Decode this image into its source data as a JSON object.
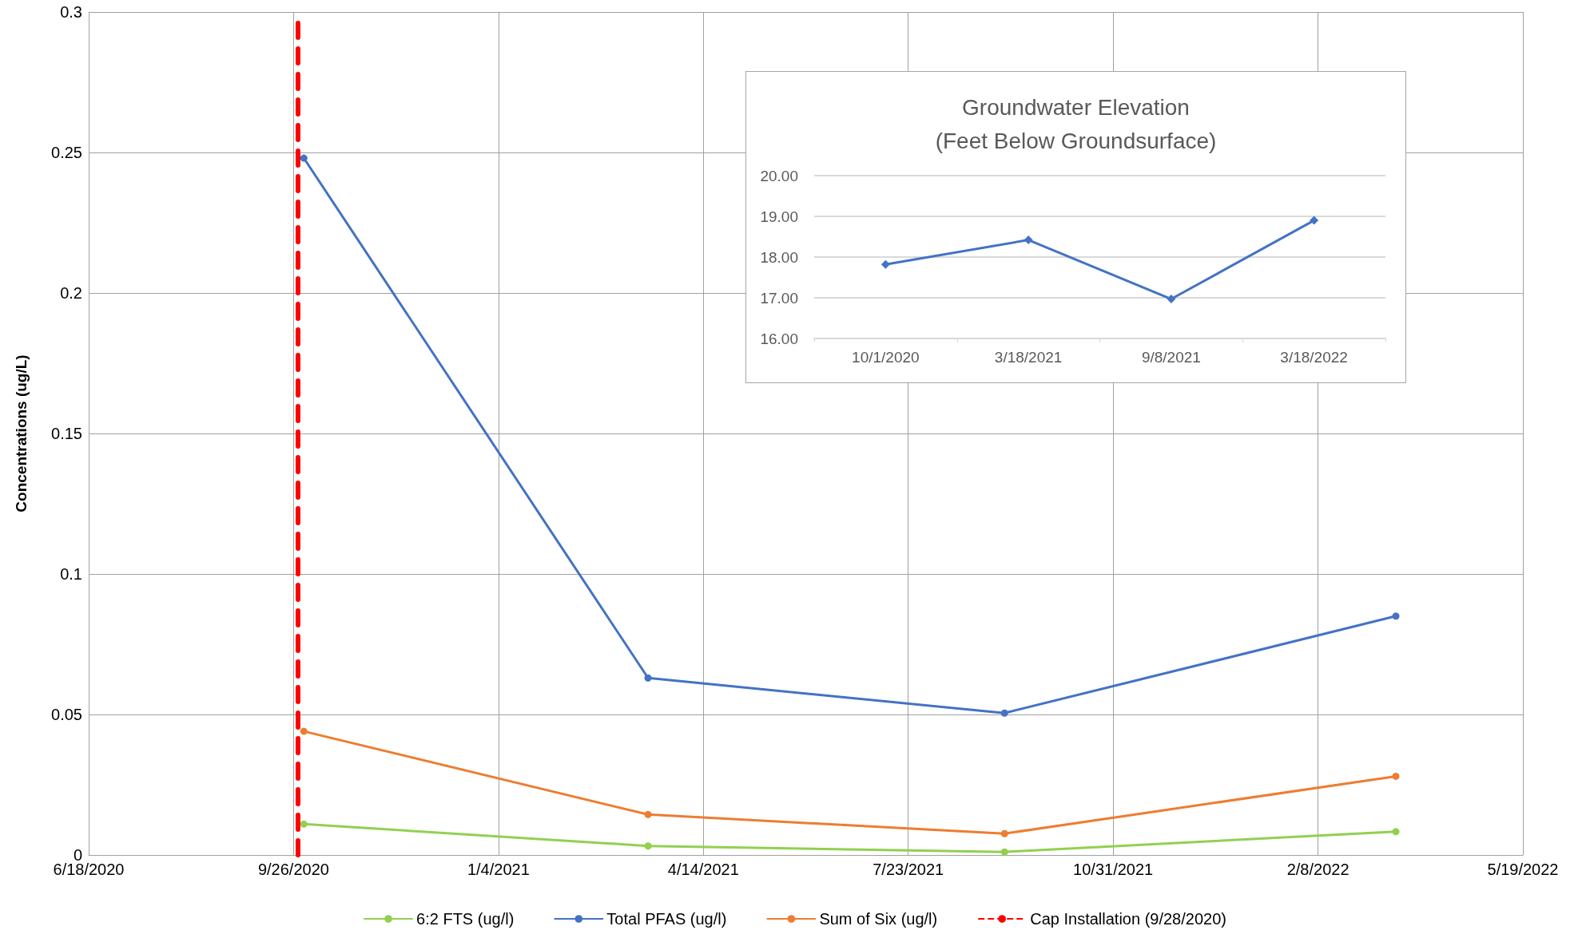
{
  "chart_data": [
    {
      "type": "line",
      "ylabel": "Concentrations (ug/L)",
      "series": [
        {
          "name": "6:2 FTS (ug/l)",
          "color": "#92d050",
          "x": [
            "2020-10-01",
            "2021-03-18",
            "2021-09-08",
            "2022-03-18"
          ],
          "values": [
            0.011,
            0.0032,
            0.0011,
            0.0083
          ]
        },
        {
          "name": "Total PFAS (ug/l)",
          "color": "#4472c4",
          "x": [
            "2020-10-01",
            "2021-03-18",
            "2021-09-08",
            "2022-03-18"
          ],
          "values": [
            0.248,
            0.063,
            0.0505,
            0.085
          ]
        },
        {
          "name": "Sum of Six (ug/l)",
          "color": "#ed7d31",
          "x": [
            "2020-10-01",
            "2021-03-18",
            "2021-09-08",
            "2022-03-18"
          ],
          "values": [
            0.044,
            0.0144,
            0.0076,
            0.028
          ]
        }
      ],
      "ref_lines": [
        {
          "axis": "x",
          "value": "2020-09-28",
          "label": "Cap Installation (9/28/2020)",
          "color": "#ff0000",
          "line_style": "dashed"
        }
      ],
      "xlim": [
        "2020-06-18",
        "2022-05-19"
      ],
      "xticks": [
        {
          "value": "2020-06-18",
          "label": "6/18/2020"
        },
        {
          "value": "2020-09-26",
          "label": "9/26/2020"
        },
        {
          "value": "2021-01-04",
          "label": "1/4/2021"
        },
        {
          "value": "2021-04-14",
          "label": "4/14/2021"
        },
        {
          "value": "2021-07-23",
          "label": "7/23/2021"
        },
        {
          "value": "2021-10-31",
          "label": "10/31/2021"
        },
        {
          "value": "2022-02-08",
          "label": "2/8/2022"
        },
        {
          "value": "2022-05-19",
          "label": "5/19/2022"
        }
      ],
      "ylim": [
        0,
        0.3
      ],
      "yticks": [
        0,
        0.05,
        0.1,
        0.15,
        0.2,
        0.25,
        0.3
      ],
      "grid": true,
      "legend": "bottom",
      "marker": "circle",
      "line_style": "solid"
    },
    {
      "type": "line",
      "title": "Groundwater Elevation\n(Feet Below Groundsurface)",
      "categories": [
        "10/1/2020",
        "3/18/2021",
        "9/8/2021",
        "3/18/2022"
      ],
      "series": [
        {
          "color": "#4472c4",
          "values": [
            17.82,
            18.42,
            16.97,
            18.9
          ]
        }
      ],
      "ylim": [
        16,
        20
      ],
      "yticks": [
        {
          "value": 16,
          "label": "16.00"
        },
        {
          "value": 17,
          "label": "17.00"
        },
        {
          "value": 18,
          "label": "18.00"
        },
        {
          "value": 19,
          "label": "19.00"
        },
        {
          "value": 20,
          "label": "20.00"
        }
      ],
      "grid": "y",
      "legend": false,
      "marker": "diamond",
      "line_style": "solid"
    }
  ]
}
